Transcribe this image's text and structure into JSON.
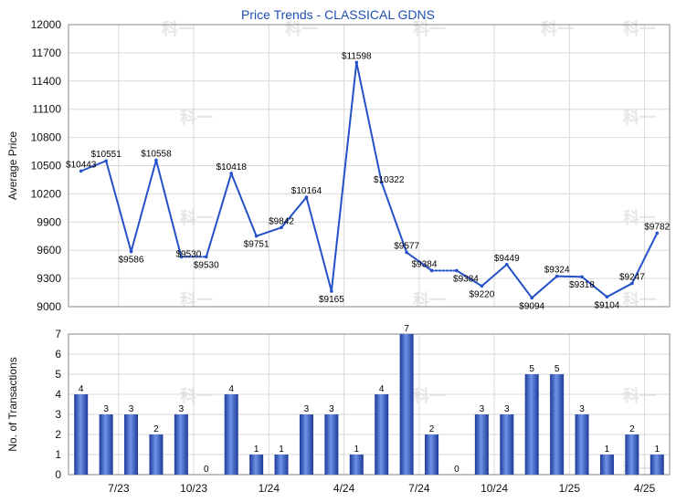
{
  "chart_data": [
    {
      "type": "line",
      "title": "Price Trends - CLASSICAL GDNS",
      "ylabel": "Average Price",
      "ylim": [
        9000,
        12000
      ],
      "yticks": [
        9000,
        9300,
        9600,
        9900,
        10200,
        10500,
        10800,
        11100,
        11400,
        11700,
        12000
      ],
      "grid": true,
      "x_labels": [
        "7/23",
        "10/23",
        "1/24",
        "4/24",
        "7/24",
        "10/24",
        "1/25",
        "4/25"
      ],
      "line_color": "#2450c8",
      "points": [
        {
          "value": 10443,
          "label": "$10443"
        },
        {
          "value": 10551,
          "label": "$10551"
        },
        {
          "value": 9586,
          "label": "$9586"
        },
        {
          "value": 10558,
          "label": "$10558"
        },
        {
          "value": 9530,
          "label": "$9530"
        },
        {
          "value": 9530,
          "label": "$9530"
        },
        {
          "value": 10418,
          "label": "$10418"
        },
        {
          "value": 9751,
          "label": "$9751"
        },
        {
          "value": 9842,
          "label": "$9842"
        },
        {
          "value": 10164,
          "label": "$10164"
        },
        {
          "value": 9165,
          "label": "$9165"
        },
        {
          "value": 11598,
          "label": "$11598"
        },
        {
          "value": 10322,
          "label": "$10322"
        },
        {
          "value": 9577,
          "label": "$9577"
        },
        {
          "value": 9384,
          "label": "$9384"
        },
        {
          "value": 9384,
          "label": "$9384"
        },
        {
          "value": 9220,
          "label": "$9220"
        },
        {
          "value": 9449,
          "label": "$9449"
        },
        {
          "value": 9094,
          "label": "$9094"
        },
        {
          "value": 9324,
          "label": "$9324"
        },
        {
          "value": 9318,
          "label": "$9318"
        },
        {
          "value": 9104,
          "label": "$9104"
        },
        {
          "value": 9247,
          "label": "$9247"
        },
        {
          "value": 9782,
          "label": "$9782"
        }
      ],
      "dotted_segments": [
        [
          4,
          5
        ],
        [
          14,
          15
        ]
      ]
    },
    {
      "type": "bar",
      "ylabel": "No. of Transactions",
      "ylim": [
        0,
        7
      ],
      "yticks": [
        0,
        1,
        2,
        3,
        4,
        5,
        6,
        7
      ],
      "grid": true,
      "x_labels": [
        "7/23",
        "10/23",
        "1/24",
        "4/24",
        "7/24",
        "10/24",
        "1/25",
        "4/25"
      ],
      "bar_color": "#3a62c8",
      "values": [
        4,
        3,
        3,
        2,
        3,
        0,
        4,
        1,
        1,
        3,
        3,
        1,
        4,
        7,
        2,
        0,
        3,
        3,
        5,
        5,
        3,
        1,
        2,
        1
      ]
    }
  ],
  "watermark": "科一"
}
